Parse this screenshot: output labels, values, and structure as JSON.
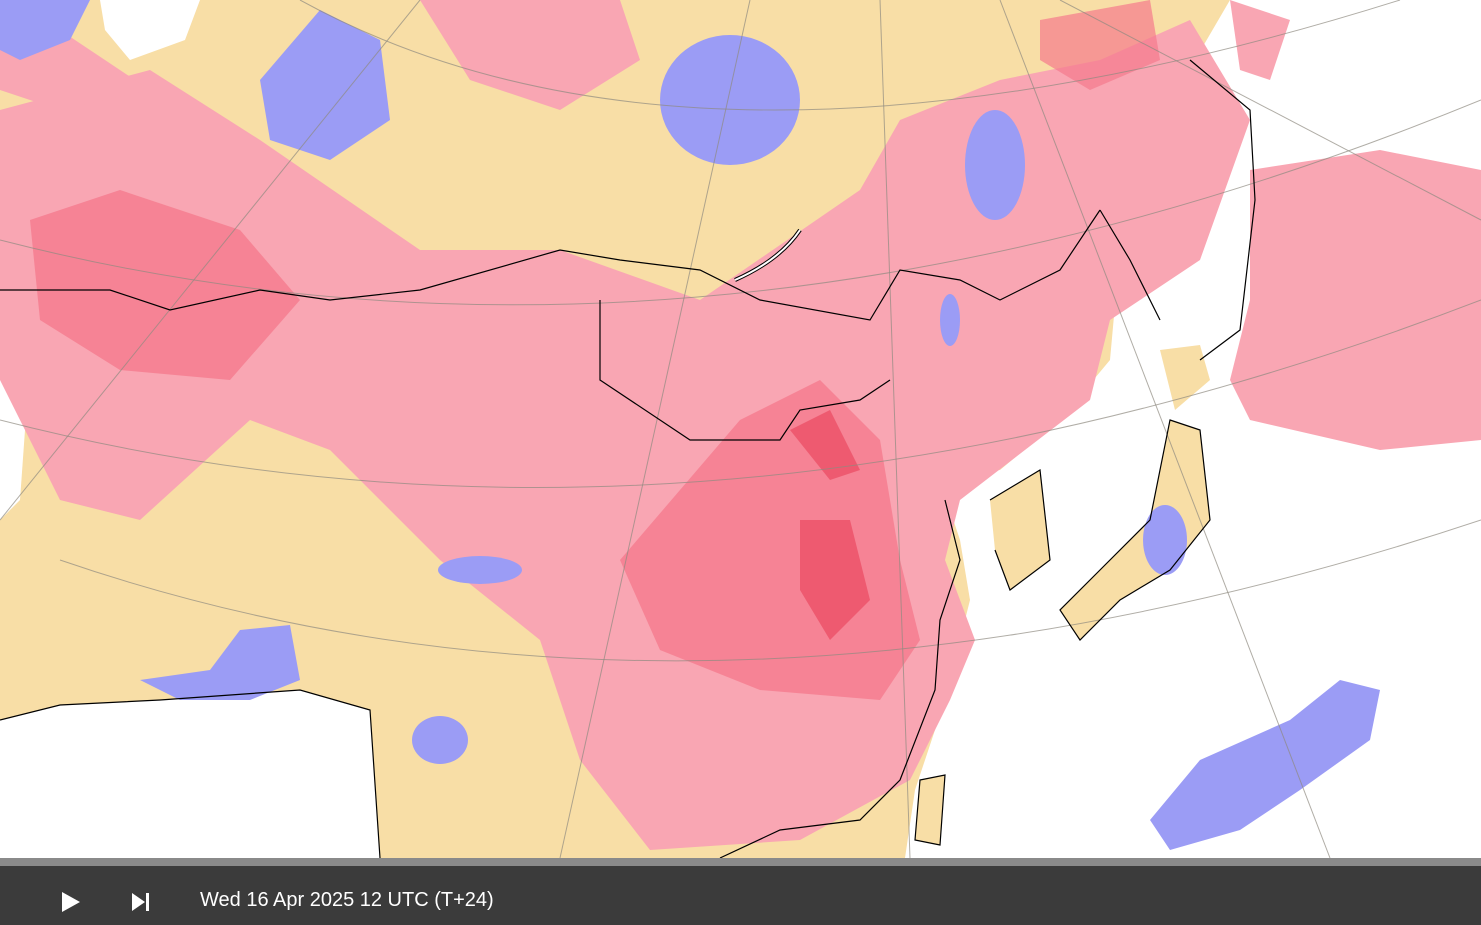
{
  "player": {
    "timestamp": "Wed 16 Apr 2025 12 UTC (T+24)"
  }
}
